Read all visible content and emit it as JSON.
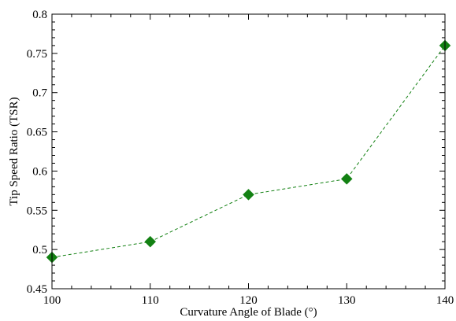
{
  "chart_data": {
    "type": "line",
    "title": "",
    "xlabel": "Curvature Angle of Blade (°)",
    "ylabel": "Tip Speed Ratio (TSR)",
    "xlim": [
      100,
      140
    ],
    "ylim": [
      0.45,
      0.8
    ],
    "xticks": [
      100,
      110,
      120,
      130,
      140
    ],
    "xtick_labels": [
      "100",
      "110",
      "120",
      "130",
      "140"
    ],
    "yticks": [
      0.45,
      0.5,
      0.55,
      0.6,
      0.65,
      0.7,
      0.75,
      0.8
    ],
    "ytick_labels": [
      "0.45",
      "0.5",
      "0.55",
      "0.6",
      "0.65",
      "0.7",
      "0.75",
      "0.8"
    ],
    "grid": false,
    "legend": "none",
    "series": [
      {
        "x": [
          100,
          110,
          120,
          130,
          140
        ],
        "y": [
          0.49,
          0.51,
          0.57,
          0.59,
          0.76
        ],
        "color": "#138113",
        "line_style": "dashed",
        "marker": "diamond"
      }
    ]
  }
}
